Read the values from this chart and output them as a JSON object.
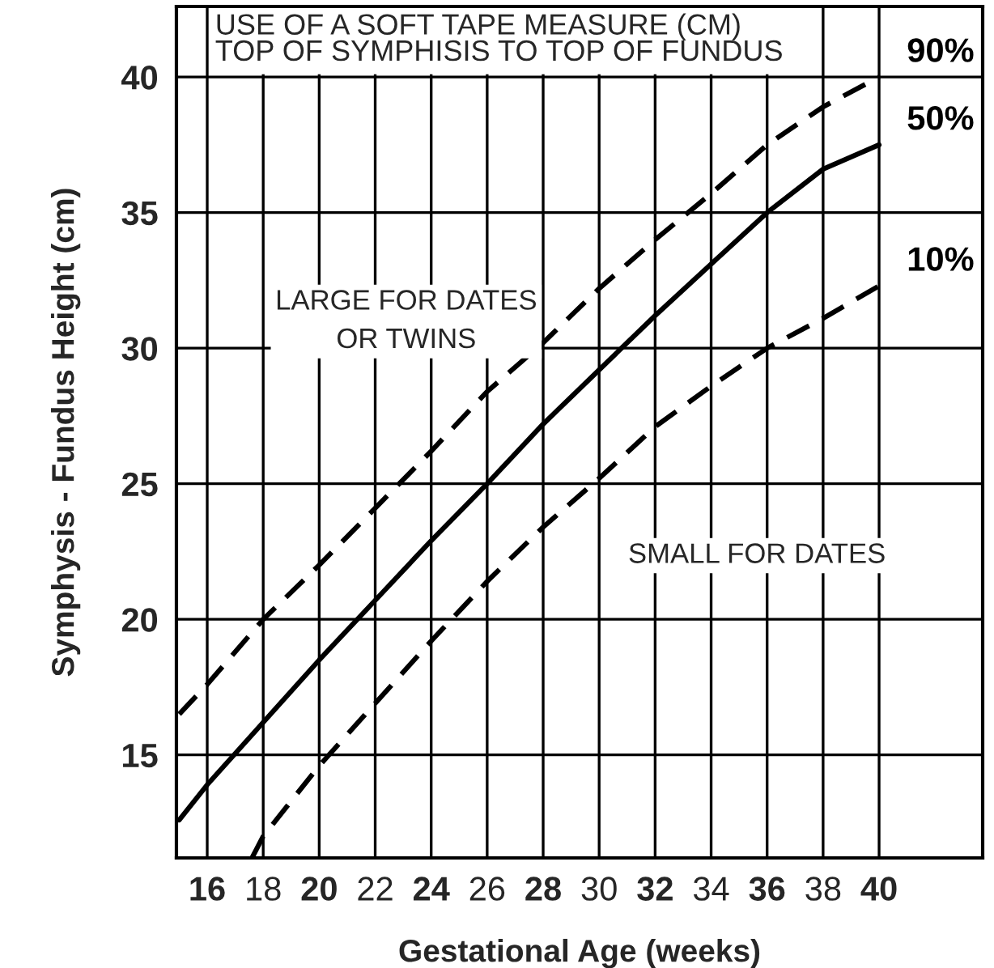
{
  "chart_data": {
    "type": "line",
    "xlabel": "Gestational Age (weeks)",
    "ylabel": "Symphysis - Fundus Height (cm)",
    "x": [
      15,
      16,
      18,
      20,
      22,
      24,
      26,
      28,
      30,
      32,
      34,
      36,
      38,
      40
    ],
    "series": [
      {
        "name": "90%",
        "color": "#000000",
        "line_style": "dashed",
        "values": [
          16.5,
          17.6,
          20.0,
          22.0,
          24.1,
          26.2,
          28.4,
          30.2,
          32.2,
          34.0,
          35.7,
          37.5,
          38.9,
          40.0
        ]
      },
      {
        "name": "50%",
        "color": "#000000",
        "line_style": "solid",
        "values": [
          12.6,
          13.9,
          16.2,
          18.5,
          20.7,
          22.9,
          25.0,
          27.2,
          29.2,
          31.2,
          33.1,
          35.0,
          36.6,
          37.5
        ]
      },
      {
        "name": "10%",
        "color": "#000000",
        "line_style": "dashed",
        "x": [
          17.6,
          18,
          20,
          22,
          24,
          26,
          28,
          30,
          32,
          34,
          36,
          38,
          40
        ],
        "values": [
          11.2,
          12.0,
          14.6,
          16.9,
          19.2,
          21.4,
          23.4,
          25.2,
          27.1,
          28.6,
          30.0,
          31.1,
          32.3
        ]
      }
    ],
    "annotations": [
      "USE OF A SOFT TAPE MEASURE (CM)\nTOP OF SYMPHISIS TO TOP OF FUNDUS",
      "LARGE FOR DATES\nOR TWINS",
      "SMALL FOR DATES"
    ],
    "xlim": [
      14.9,
      43.7
    ],
    "ylim": [
      11.2,
      42.6
    ],
    "xticks": [
      16,
      18,
      20,
      22,
      24,
      26,
      28,
      30,
      32,
      34,
      36,
      38,
      40
    ],
    "yticks": [
      15,
      20,
      25,
      30,
      35,
      40
    ],
    "grid": true,
    "legend": false
  }
}
